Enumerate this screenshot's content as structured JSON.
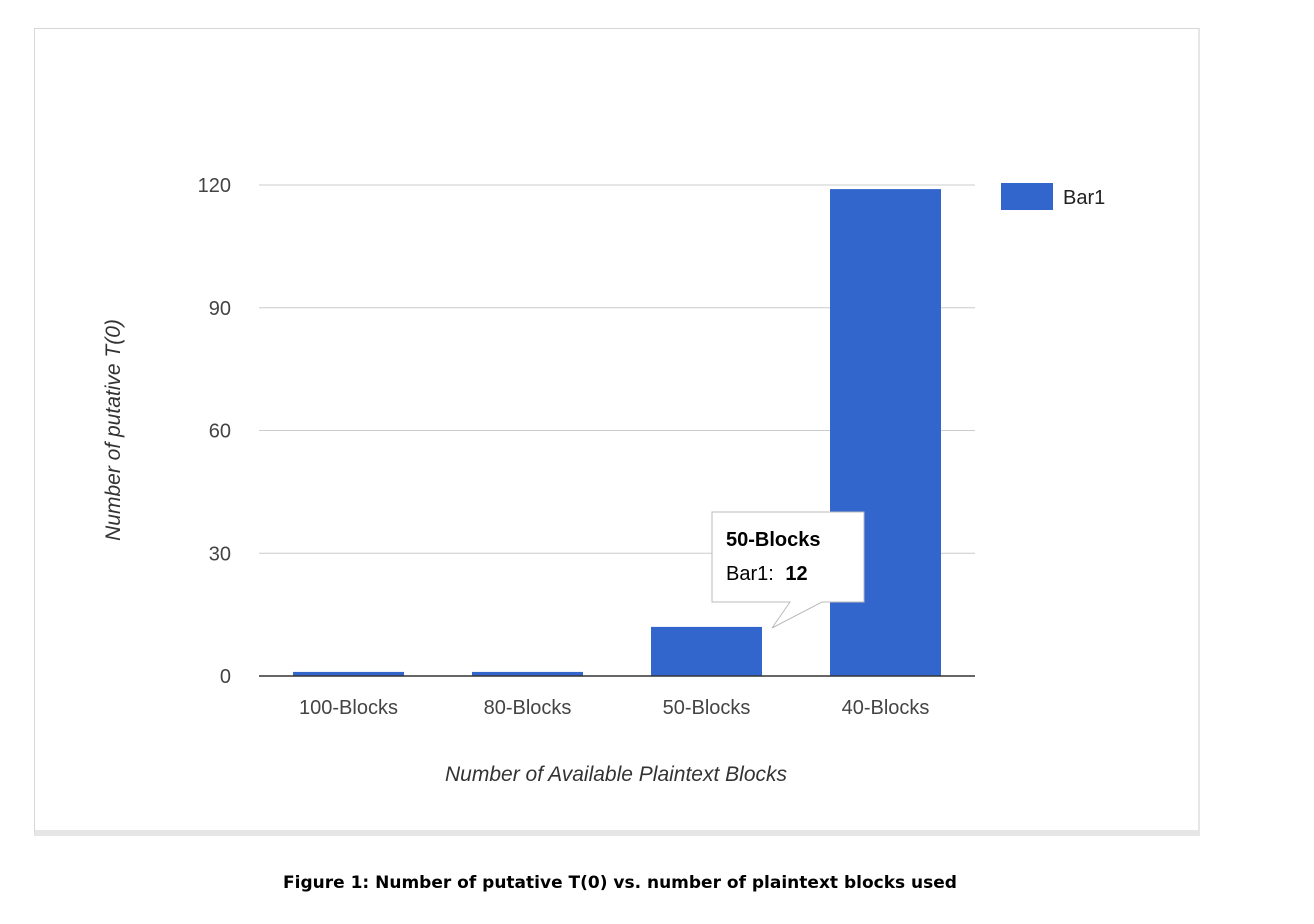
{
  "caption": "Figure 1: Number of putative T(0) vs. number of plaintext blocks used",
  "chart_data": {
    "type": "bar",
    "categories": [
      "100-Blocks",
      "80-Blocks",
      "50-Blocks",
      "40-Blocks"
    ],
    "series": [
      {
        "name": "Bar1",
        "values": [
          1,
          1,
          12,
          119
        ],
        "color": "#3366cc"
      }
    ],
    "xlabel": "Number of Available Plaintext Blocks",
    "ylabel": "Number of putative T(0)",
    "ylim": [
      0,
      120
    ],
    "yticks": [
      0,
      30,
      60,
      90,
      120
    ],
    "grid": true,
    "legend_position": "right",
    "tooltip": {
      "category": "50-Blocks",
      "series_label": "Bar1:",
      "value": "12"
    }
  }
}
